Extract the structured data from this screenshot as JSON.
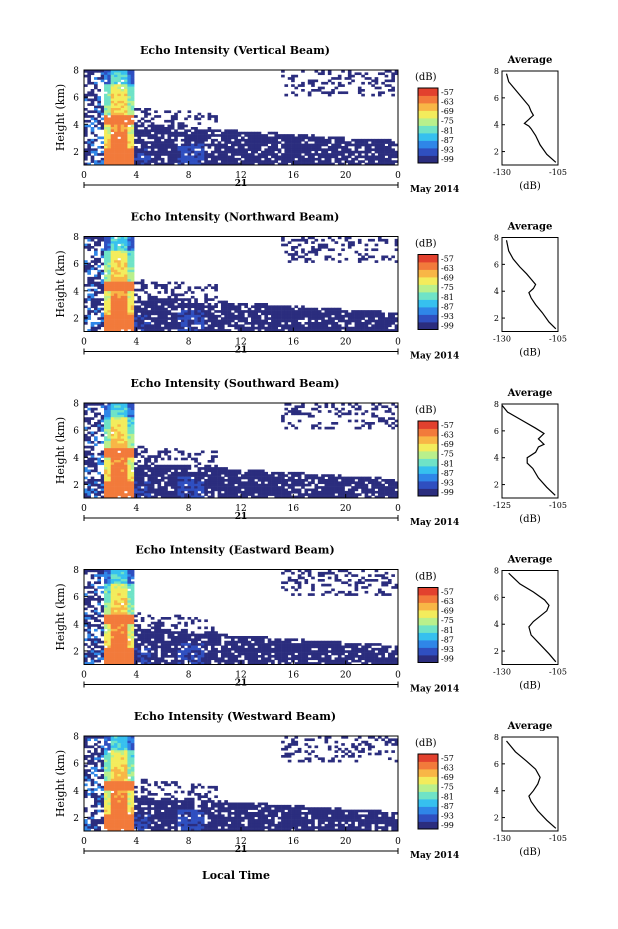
{
  "figure": {
    "xlabel": "Local Time",
    "colorbar_unit": "(dB)",
    "colorbar_ticks": [
      "-57",
      "-63",
      "-69",
      "-75",
      "-81",
      "-87",
      "-93",
      "-99"
    ],
    "colorscale": [
      "#2b2d7e",
      "#2f4fc0",
      "#2f86e8",
      "#36c0ef",
      "#6fe3c7",
      "#b9f08c",
      "#f3ec5c",
      "#f8b646",
      "#f27a3b",
      "#e2412e"
    ],
    "date_label": "May 2014",
    "day_label": "21",
    "average_title": "Average",
    "average_xlabel": "(dB)"
  },
  "chart_data": [
    {
      "type": "heatmap",
      "title": "Echo Intensity (Vertical Beam)",
      "ylabel": "Height (km)",
      "x_ticks": [
        "0",
        "4",
        "8",
        "12",
        "16",
        "20",
        "0"
      ],
      "y_ticks": [
        "2",
        "4",
        "6",
        "8"
      ],
      "xlim": [
        0,
        24
      ],
      "ylim": [
        1,
        8
      ],
      "colorbar_range": [
        -99,
        -57
      ],
      "average": {
        "title": "Average",
        "xlabel": "(dB)",
        "xlim": [
          -130,
          -105
        ],
        "x_ticks": [
          "-130",
          "-105"
        ],
        "y_ticks": [
          "2",
          "4",
          "6",
          "8"
        ],
        "ylim": [
          1,
          8
        ],
        "profile": [
          [
            -106,
            1.2
          ],
          [
            -110,
            1.8
          ],
          [
            -113,
            2.5
          ],
          [
            -115,
            3.2
          ],
          [
            -117,
            3.7
          ],
          [
            -118,
            3.9
          ],
          [
            -120,
            4.1
          ],
          [
            -118,
            4.4
          ],
          [
            -116,
            4.7
          ],
          [
            -117,
            5.0
          ],
          [
            -118,
            5.4
          ],
          [
            -121,
            6.0
          ],
          [
            -124,
            6.6
          ],
          [
            -127,
            7.2
          ],
          [
            -128,
            7.8
          ]
        ]
      }
    },
    {
      "type": "heatmap",
      "title": "Echo Intensity (Northward Beam)",
      "ylabel": "Height (km)",
      "x_ticks": [
        "0",
        "4",
        "8",
        "12",
        "16",
        "20",
        "0"
      ],
      "y_ticks": [
        "2",
        "4",
        "6",
        "8"
      ],
      "xlim": [
        0,
        24
      ],
      "ylim": [
        1,
        8
      ],
      "colorbar_range": [
        -99,
        -57
      ],
      "average": {
        "title": "Average",
        "xlabel": "(dB)",
        "xlim": [
          -130,
          -105
        ],
        "x_ticks": [
          "-130",
          "-105"
        ],
        "y_ticks": [
          "2",
          "4",
          "6",
          "8"
        ],
        "ylim": [
          1,
          8
        ],
        "profile": [
          [
            -106,
            1.2
          ],
          [
            -109,
            1.7
          ],
          [
            -112,
            2.4
          ],
          [
            -115,
            3.0
          ],
          [
            -117,
            3.5
          ],
          [
            -118,
            3.9
          ],
          [
            -116,
            4.2
          ],
          [
            -115,
            4.5
          ],
          [
            -117,
            4.9
          ],
          [
            -119,
            5.3
          ],
          [
            -122,
            5.8
          ],
          [
            -125,
            6.4
          ],
          [
            -127,
            7.0
          ],
          [
            -128,
            7.8
          ]
        ]
      }
    },
    {
      "type": "heatmap",
      "title": "Echo Intensity (Southward Beam)",
      "ylabel": "Height (km)",
      "x_ticks": [
        "0",
        "4",
        "8",
        "12",
        "16",
        "20",
        "0"
      ],
      "y_ticks": [
        "2",
        "4",
        "6",
        "8"
      ],
      "xlim": [
        0,
        24
      ],
      "ylim": [
        1,
        8
      ],
      "colorbar_range": [
        -99,
        -57
      ],
      "average": {
        "title": "Average",
        "xlabel": "(dB)",
        "xlim": [
          -125,
          -105
        ],
        "x_ticks": [
          "-125",
          "-105"
        ],
        "y_ticks": [
          "2",
          "4",
          "6",
          "8"
        ],
        "ylim": [
          1,
          8
        ],
        "profile": [
          [
            -106,
            1.2
          ],
          [
            -109,
            1.8
          ],
          [
            -112,
            2.5
          ],
          [
            -114,
            3.2
          ],
          [
            -116,
            3.6
          ],
          [
            -116,
            4.0
          ],
          [
            -113,
            4.4
          ],
          [
            -112,
            4.8
          ],
          [
            -110,
            5.0
          ],
          [
            -112,
            5.4
          ],
          [
            -110,
            5.8
          ],
          [
            -113,
            6.2
          ],
          [
            -118,
            6.8
          ],
          [
            -123,
            7.4
          ],
          [
            -125,
            7.9
          ]
        ]
      }
    },
    {
      "type": "heatmap",
      "title": "Echo Intensity (Eastward Beam)",
      "ylabel": "Height (km)",
      "x_ticks": [
        "0",
        "4",
        "8",
        "12",
        "16",
        "20",
        "0"
      ],
      "y_ticks": [
        "2",
        "4",
        "6",
        "8"
      ],
      "xlim": [
        0,
        24
      ],
      "ylim": [
        1,
        8
      ],
      "colorbar_range": [
        -99,
        -57
      ],
      "average": {
        "title": "Average",
        "xlabel": "(dB)",
        "xlim": [
          -130,
          -105
        ],
        "x_ticks": [
          "-130",
          "-105"
        ],
        "y_ticks": [
          "2",
          "4",
          "6",
          "8"
        ],
        "ylim": [
          1,
          8
        ],
        "profile": [
          [
            -106,
            1.2
          ],
          [
            -109,
            1.8
          ],
          [
            -113,
            2.5
          ],
          [
            -117,
            3.2
          ],
          [
            -118,
            3.8
          ],
          [
            -116,
            4.2
          ],
          [
            -113,
            4.6
          ],
          [
            -110,
            5.0
          ],
          [
            -109,
            5.4
          ],
          [
            -111,
            5.8
          ],
          [
            -116,
            6.4
          ],
          [
            -122,
            7.0
          ],
          [
            -127,
            7.8
          ]
        ]
      }
    },
    {
      "type": "heatmap",
      "title": "Echo Intensity (Westward Beam)",
      "ylabel": "Height (km)",
      "x_ticks": [
        "0",
        "4",
        "8",
        "12",
        "16",
        "20",
        "0"
      ],
      "y_ticks": [
        "2",
        "4",
        "6",
        "8"
      ],
      "xlim": [
        0,
        24
      ],
      "ylim": [
        1,
        8
      ],
      "colorbar_range": [
        -99,
        -57
      ],
      "average": {
        "title": "Average",
        "xlabel": "(dB)",
        "xlim": [
          -130,
          -105
        ],
        "x_ticks": [
          "-130",
          "-105"
        ],
        "y_ticks": [
          "2",
          "4",
          "6",
          "8"
        ],
        "ylim": [
          1,
          8
        ],
        "profile": [
          [
            -106,
            1.2
          ],
          [
            -110,
            1.8
          ],
          [
            -114,
            2.5
          ],
          [
            -117,
            3.2
          ],
          [
            -118,
            3.6
          ],
          [
            -116,
            4.0
          ],
          [
            -114,
            4.5
          ],
          [
            -113,
            5.0
          ],
          [
            -115,
            5.6
          ],
          [
            -119,
            6.2
          ],
          [
            -124,
            6.9
          ],
          [
            -128,
            7.7
          ]
        ]
      }
    }
  ]
}
